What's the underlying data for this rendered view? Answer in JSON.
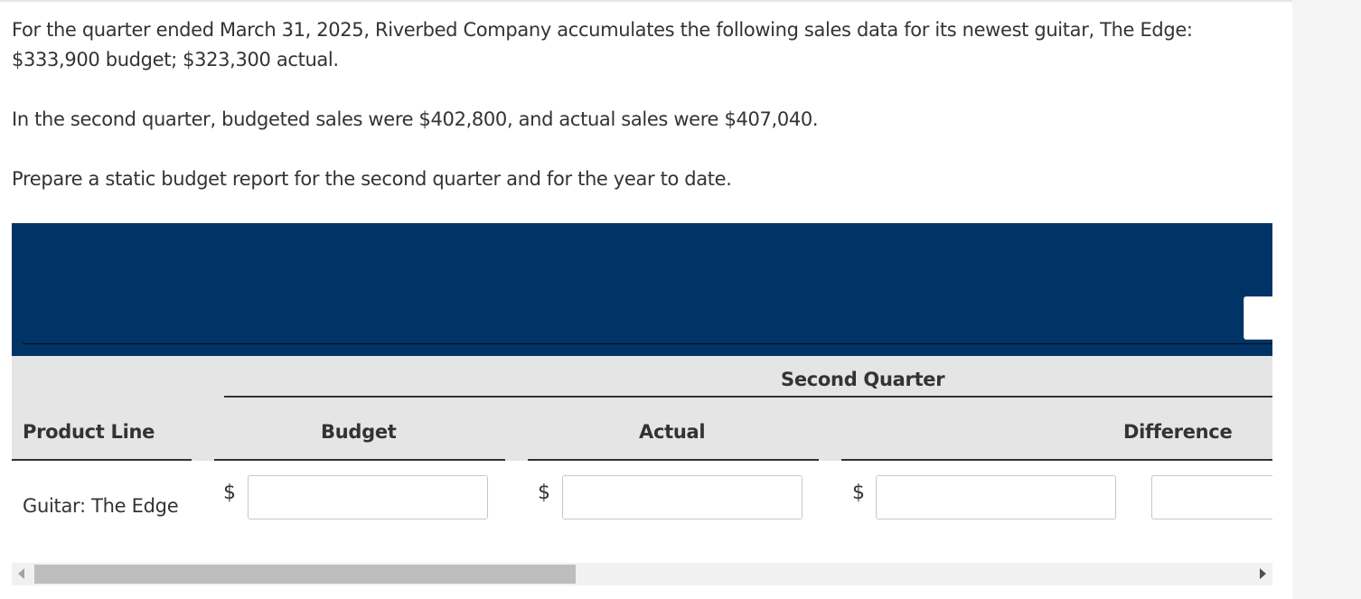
{
  "problem": {
    "paragraph_1": "For the quarter ended March 31, 2025, Riverbed Company accumulates the following sales data for its newest guitar, The Edge: $333,900 budget; $323,300 actual.",
    "paragraph_2": "In the second quarter, budgeted sales were $402,800, and actual sales were $407,040.",
    "paragraph_3": "Prepare a static budget report for the second quarter and for the year to date."
  },
  "table": {
    "group_header": "Second Quarter",
    "columns": {
      "product_line": "Product Line",
      "budget": "Budget",
      "actual": "Actual",
      "difference": "Difference"
    },
    "rows": [
      {
        "label": "Guitar: The Edge",
        "currency_symbol": "$",
        "budget_value": "",
        "actual_value": "",
        "difference_value": "",
        "extra_value": ""
      }
    ],
    "banner_input_value": ""
  },
  "colors": {
    "banner": "#003366",
    "header_band": "#e5e5e5",
    "text": "#333333"
  },
  "icons": {
    "scroll_left": "triangle-left-icon",
    "scroll_right": "triangle-right-icon"
  }
}
